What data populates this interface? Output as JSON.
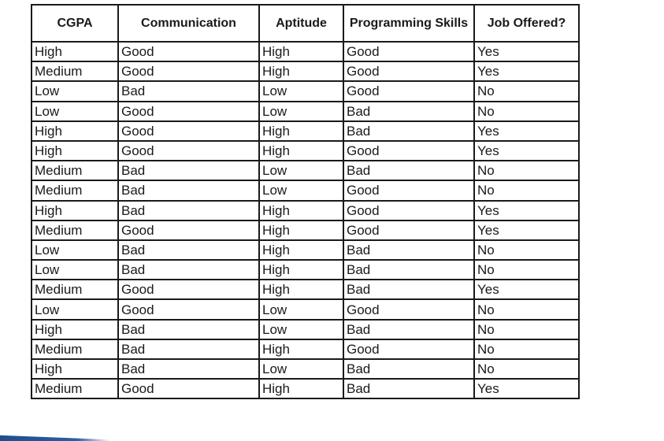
{
  "table": {
    "headers": [
      "CGPA",
      "Communication",
      "Aptitude",
      "Programming Skills",
      "Job Offered?"
    ],
    "rows": [
      [
        "High",
        "Good",
        "High",
        "Good",
        "Yes"
      ],
      [
        "Medium",
        "Good",
        "High",
        "Good",
        "Yes"
      ],
      [
        "Low",
        "Bad",
        "Low",
        "Good",
        "No"
      ],
      [
        "Low",
        "Good",
        "Low",
        "Bad",
        "No"
      ],
      [
        "High",
        "Good",
        "High",
        "Bad",
        "Yes"
      ],
      [
        "High",
        "Good",
        "High",
        "Good",
        "Yes"
      ],
      [
        "Medium",
        "Bad",
        "Low",
        "Bad",
        "No"
      ],
      [
        "Medium",
        "Bad",
        "Low",
        "Good",
        "No"
      ],
      [
        "High",
        "Bad",
        "High",
        "Good",
        "Yes"
      ],
      [
        "Medium",
        "Good",
        "High",
        "Good",
        "Yes"
      ],
      [
        "Low",
        "Bad",
        "High",
        "Bad",
        "No"
      ],
      [
        "Low",
        "Bad",
        "High",
        "Bad",
        "No"
      ],
      [
        "Medium",
        "Good",
        "High",
        "Bad",
        "Yes"
      ],
      [
        "Low",
        "Good",
        "Low",
        "Good",
        "No"
      ],
      [
        "High",
        "Bad",
        "Low",
        "Bad",
        "No"
      ],
      [
        "Medium",
        "Bad",
        "High",
        "Good",
        "No"
      ],
      [
        "High",
        "Bad",
        "Low",
        "Bad",
        "No"
      ],
      [
        "Medium",
        "Good",
        "High",
        "Bad",
        "Yes"
      ]
    ]
  },
  "colors": {
    "border": "#1a1a1a",
    "text": "#1a1a1a",
    "accent": "#1f4e8c"
  }
}
